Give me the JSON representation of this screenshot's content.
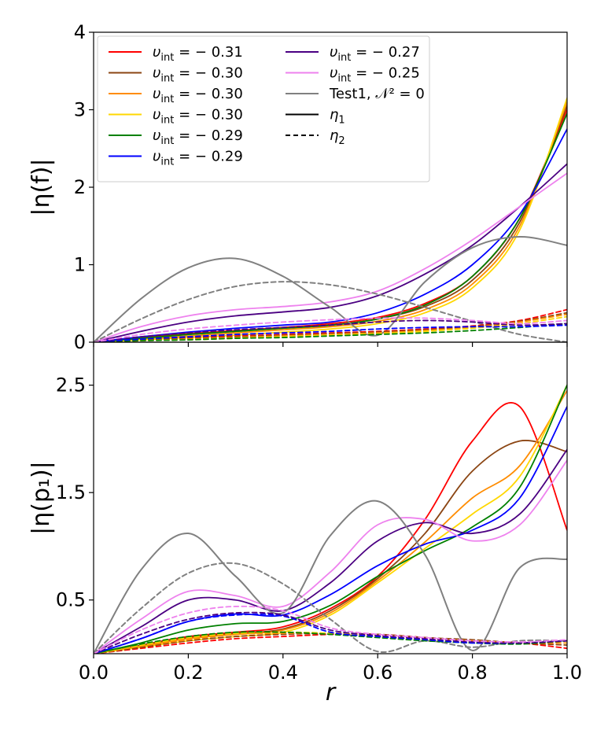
{
  "chart_data": {
    "type": "line",
    "shared_x": {
      "label": "r",
      "xlim": [
        0.0,
        1.0
      ],
      "ticks": [
        0.0,
        0.2,
        0.4,
        0.6,
        0.8,
        1.0
      ],
      "tick_labels": [
        "0.0",
        "0.2",
        "0.4",
        "0.6",
        "0.8",
        "1.0"
      ]
    },
    "legend": {
      "placement": "top-left",
      "entries": [
        {
          "key": "s031",
          "text": "υ",
          "sub": "int",
          "tail": " = − 0.31",
          "color": "#ff0000",
          "dash": "solid"
        },
        {
          "key": "s030a",
          "text": "υ",
          "sub": "int",
          "tail": " = − 0.30",
          "color": "#8b4513",
          "dash": "solid"
        },
        {
          "key": "s030b",
          "text": "υ",
          "sub": "int",
          "tail": " = − 0.30",
          "color": "#ff8c00",
          "dash": "solid"
        },
        {
          "key": "s030c",
          "text": "υ",
          "sub": "int",
          "tail": " = − 0.30",
          "color": "#ffd700",
          "dash": "solid"
        },
        {
          "key": "s029a",
          "text": "υ",
          "sub": "int",
          "tail": " = − 0.29",
          "color": "#008000",
          "dash": "solid"
        },
        {
          "key": "s029b",
          "text": "υ",
          "sub": "int",
          "tail": " = − 0.29",
          "color": "#0000ff",
          "dash": "solid"
        },
        {
          "key": "s027",
          "text": "υ",
          "sub": "int",
          "tail": " = − 0.27",
          "color": "#4b0082",
          "dash": "solid"
        },
        {
          "key": "s025",
          "text": "υ",
          "sub": "int",
          "tail": " = − 0.25",
          "color": "#ee82ee",
          "dash": "solid"
        },
        {
          "key": "test1",
          "text": "Test1, 𝒩² = 0",
          "sub": "",
          "tail": "",
          "color": "#808080",
          "dash": "solid"
        },
        {
          "key": "eta1",
          "text": "η",
          "sub": "1",
          "tail": "",
          "color": "#000000",
          "dash": "solid"
        },
        {
          "key": "eta2",
          "text": "η",
          "sub": "2",
          "tail": "",
          "color": "#000000",
          "dash": "dashed"
        }
      ]
    },
    "panels": [
      {
        "name": "top",
        "ylabel": "|η(f)|",
        "ylim": [
          0,
          4
        ],
        "yticks": [
          0,
          1,
          2,
          3,
          4
        ],
        "ytick_labels": [
          "0",
          "1",
          "2",
          "3",
          "4"
        ],
        "x": [
          0.0,
          0.1,
          0.2,
          0.3,
          0.4,
          0.5,
          0.6,
          0.7,
          0.8,
          0.9,
          1.0
        ],
        "series": [
          {
            "name": "υint = −0.31 η1",
            "color": "#ff0000",
            "dash": "solid",
            "values": [
              0,
              0.06,
              0.11,
              0.15,
              0.19,
              0.24,
              0.32,
              0.5,
              0.85,
              1.6,
              3.0
            ]
          },
          {
            "name": "υint = −0.30 η1 (brown)",
            "color": "#8b4513",
            "dash": "solid",
            "values": [
              0,
              0.05,
              0.1,
              0.14,
              0.18,
              0.22,
              0.3,
              0.46,
              0.8,
              1.55,
              3.05
            ]
          },
          {
            "name": "υint = −0.30 η1 (orange)",
            "color": "#ff8c00",
            "dash": "solid",
            "values": [
              0,
              0.04,
              0.08,
              0.12,
              0.16,
              0.2,
              0.27,
              0.42,
              0.75,
              1.5,
              3.1
            ]
          },
          {
            "name": "υint = −0.30 η1 (gold)",
            "color": "#ffd700",
            "dash": "solid",
            "values": [
              0,
              0.03,
              0.06,
              0.09,
              0.13,
              0.17,
              0.24,
              0.38,
              0.7,
              1.45,
              3.15
            ]
          },
          {
            "name": "υint = −0.29 η1 (green)",
            "color": "#008000",
            "dash": "solid",
            "values": [
              0,
              0.05,
              0.1,
              0.14,
              0.18,
              0.22,
              0.3,
              0.48,
              0.85,
              1.6,
              2.95
            ]
          },
          {
            "name": "υint = −0.29 η1 (blue)",
            "color": "#0000ff",
            "dash": "solid",
            "values": [
              0,
              0.07,
              0.13,
              0.18,
              0.22,
              0.26,
              0.38,
              0.62,
              1.0,
              1.65,
              2.75
            ]
          },
          {
            "name": "υint = −0.27 η1",
            "color": "#4b0082",
            "dash": "solid",
            "values": [
              0,
              0.14,
              0.26,
              0.34,
              0.39,
              0.45,
              0.6,
              0.88,
              1.25,
              1.75,
              2.3
            ]
          },
          {
            "name": "υint = −0.25 η1",
            "color": "#ee82ee",
            "dash": "solid",
            "values": [
              0,
              0.2,
              0.34,
              0.42,
              0.46,
              0.52,
              0.66,
              0.95,
              1.32,
              1.75,
              2.18
            ]
          },
          {
            "name": "Test1 η1",
            "color": "#808080",
            "dash": "solid",
            "values": [
              0,
              0.56,
              0.96,
              1.08,
              0.85,
              0.45,
              0.09,
              0.78,
              1.22,
              1.36,
              1.25
            ]
          },
          {
            "name": "Test1 η2",
            "color": "#808080",
            "dash": "dashed",
            "values": [
              0,
              0.3,
              0.55,
              0.72,
              0.78,
              0.74,
              0.62,
              0.45,
              0.27,
              0.1,
              0.0
            ]
          },
          {
            "name": "υint = −0.31 η2",
            "color": "#ff0000",
            "dash": "dashed",
            "values": [
              0,
              0.03,
              0.06,
              0.08,
              0.1,
              0.12,
              0.14,
              0.17,
              0.21,
              0.28,
              0.42
            ]
          },
          {
            "name": "υint = −0.30 η2 (brown)",
            "color": "#8b4513",
            "dash": "dashed",
            "values": [
              0,
              0.03,
              0.05,
              0.07,
              0.09,
              0.11,
              0.13,
              0.16,
              0.2,
              0.27,
              0.38
            ]
          },
          {
            "name": "υint = −0.30 η2 (orange)",
            "color": "#ff8c00",
            "dash": "dashed",
            "values": [
              0,
              0.02,
              0.04,
              0.06,
              0.08,
              0.1,
              0.12,
              0.15,
              0.19,
              0.26,
              0.36
            ]
          },
          {
            "name": "υint = −0.30 η2 (gold)",
            "color": "#ffd700",
            "dash": "dashed",
            "values": [
              0,
              0.02,
              0.03,
              0.05,
              0.07,
              0.09,
              0.11,
              0.14,
              0.18,
              0.24,
              0.33
            ]
          },
          {
            "name": "υint = −0.29 η2 (green)",
            "color": "#008000",
            "dash": "dashed",
            "values": [
              0,
              0.02,
              0.03,
              0.05,
              0.06,
              0.08,
              0.1,
              0.12,
              0.15,
              0.19,
              0.24
            ]
          },
          {
            "name": "υint = −0.29 η2 (blue)",
            "color": "#0000ff",
            "dash": "dashed",
            "values": [
              0,
              0.04,
              0.07,
              0.1,
              0.12,
              0.14,
              0.17,
              0.19,
              0.2,
              0.2,
              0.22
            ]
          },
          {
            "name": "υint = −0.27 η2",
            "color": "#4b0082",
            "dash": "dashed",
            "values": [
              0,
              0.07,
              0.12,
              0.16,
              0.19,
              0.22,
              0.26,
              0.28,
              0.26,
              0.22,
              0.24
            ]
          },
          {
            "name": "υint = −0.25 η2",
            "color": "#ee82ee",
            "dash": "dashed",
            "values": [
              0,
              0.1,
              0.17,
              0.22,
              0.26,
              0.29,
              0.31,
              0.31,
              0.28,
              0.24,
              0.28
            ]
          }
        ]
      },
      {
        "name": "bottom",
        "ylabel": "|η(p₁)|",
        "ylim": [
          0,
          2.9
        ],
        "yticks": [
          0.5,
          1.5,
          2.5
        ],
        "ytick_labels": [
          "0.5",
          "1.5",
          "2.5"
        ],
        "x": [
          0.0,
          0.1,
          0.2,
          0.3,
          0.4,
          0.5,
          0.6,
          0.7,
          0.8,
          0.9,
          1.0
        ],
        "series": [
          {
            "name": "υint = −0.31 η1",
            "color": "#ff0000",
            "dash": "solid",
            "values": [
              0,
              0.08,
              0.16,
              0.2,
              0.25,
              0.42,
              0.72,
              1.25,
              1.98,
              2.3,
              1.15
            ]
          },
          {
            "name": "υint = −0.30 η1 (brown)",
            "color": "#8b4513",
            "dash": "solid",
            "values": [
              0,
              0.08,
              0.15,
              0.19,
              0.23,
              0.4,
              0.7,
              1.12,
              1.7,
              1.98,
              1.88
            ]
          },
          {
            "name": "υint = −0.30 η1 (orange)",
            "color": "#ff8c00",
            "dash": "solid",
            "values": [
              0,
              0.07,
              0.14,
              0.18,
              0.22,
              0.38,
              0.68,
              1.04,
              1.45,
              1.75,
              2.45
            ]
          },
          {
            "name": "υint = −0.30 η1 (gold)",
            "color": "#ffd700",
            "dash": "solid",
            "values": [
              0,
              0.06,
              0.12,
              0.16,
              0.2,
              0.36,
              0.66,
              0.98,
              1.3,
              1.65,
              2.5
            ]
          },
          {
            "name": "υint = −0.29 η1 (green)",
            "color": "#008000",
            "dash": "solid",
            "values": [
              0,
              0.1,
              0.22,
              0.28,
              0.3,
              0.45,
              0.72,
              0.96,
              1.18,
              1.55,
              2.5
            ]
          },
          {
            "name": "υint = −0.29 η1 (blue)",
            "color": "#0000ff",
            "dash": "solid",
            "values": [
              0,
              0.14,
              0.3,
              0.37,
              0.36,
              0.55,
              0.82,
              1.02,
              1.15,
              1.45,
              2.3
            ]
          },
          {
            "name": "υint = −0.27 η1",
            "color": "#4b0082",
            "dash": "solid",
            "values": [
              0,
              0.25,
              0.5,
              0.5,
              0.4,
              0.66,
              1.05,
              1.22,
              1.12,
              1.3,
              1.9
            ]
          },
          {
            "name": "υint = −0.25 η1",
            "color": "#ee82ee",
            "dash": "solid",
            "values": [
              0,
              0.32,
              0.58,
              0.54,
              0.44,
              0.76,
              1.2,
              1.25,
              1.05,
              1.2,
              1.8
            ]
          },
          {
            "name": "Test1 η1",
            "color": "#808080",
            "dash": "solid",
            "values": [
              0,
              0.78,
              1.12,
              0.72,
              0.38,
              1.1,
              1.42,
              0.92,
              0.03,
              0.8,
              0.88
            ]
          },
          {
            "name": "Test1 η2",
            "color": "#808080",
            "dash": "dashed",
            "values": [
              0,
              0.42,
              0.75,
              0.84,
              0.65,
              0.32,
              0.02,
              0.12,
              0.06,
              0.12,
              0.12
            ]
          },
          {
            "name": "υint = −0.31 η2",
            "color": "#ff0000",
            "dash": "dashed",
            "values": [
              0,
              0.05,
              0.1,
              0.14,
              0.16,
              0.18,
              0.18,
              0.15,
              0.12,
              0.1,
              0.05
            ]
          },
          {
            "name": "υint = −0.30 η2 (brown)",
            "color": "#8b4513",
            "dash": "dashed",
            "values": [
              0,
              0.06,
              0.12,
              0.16,
              0.18,
              0.19,
              0.18,
              0.15,
              0.13,
              0.1,
              0.08
            ]
          },
          {
            "name": "υint = −0.30 η2 (orange)",
            "color": "#ff8c00",
            "dash": "dashed",
            "values": [
              0,
              0.07,
              0.13,
              0.18,
              0.19,
              0.19,
              0.17,
              0.14,
              0.12,
              0.1,
              0.1
            ]
          },
          {
            "name": "υint = −0.30 η2 (gold)",
            "color": "#ffd700",
            "dash": "dashed",
            "values": [
              0,
              0.08,
              0.15,
              0.19,
              0.2,
              0.19,
              0.16,
              0.13,
              0.11,
              0.1,
              0.12
            ]
          },
          {
            "name": "υint = −0.29 η2 (green)",
            "color": "#008000",
            "dash": "dashed",
            "values": [
              0,
              0.09,
              0.16,
              0.2,
              0.2,
              0.18,
              0.15,
              0.12,
              0.1,
              0.09,
              0.12
            ]
          },
          {
            "name": "υint = −0.29 η2 (blue)",
            "color": "#0000ff",
            "dash": "dashed",
            "values": [
              0,
              0.14,
              0.3,
              0.36,
              0.35,
              0.2,
              0.16,
              0.13,
              0.1,
              0.1,
              0.12
            ]
          },
          {
            "name": "υint = −0.27 η2",
            "color": "#4b0082",
            "dash": "dashed",
            "values": [
              0,
              0.18,
              0.32,
              0.38,
              0.36,
              0.22,
              0.17,
              0.14,
              0.11,
              0.1,
              0.12
            ]
          },
          {
            "name": "υint = −0.25 η2",
            "color": "#ee82ee",
            "dash": "dashed",
            "values": [
              0,
              0.22,
              0.38,
              0.44,
              0.4,
              0.24,
              0.18,
              0.15,
              0.12,
              0.11,
              0.13
            ]
          }
        ]
      }
    ]
  }
}
